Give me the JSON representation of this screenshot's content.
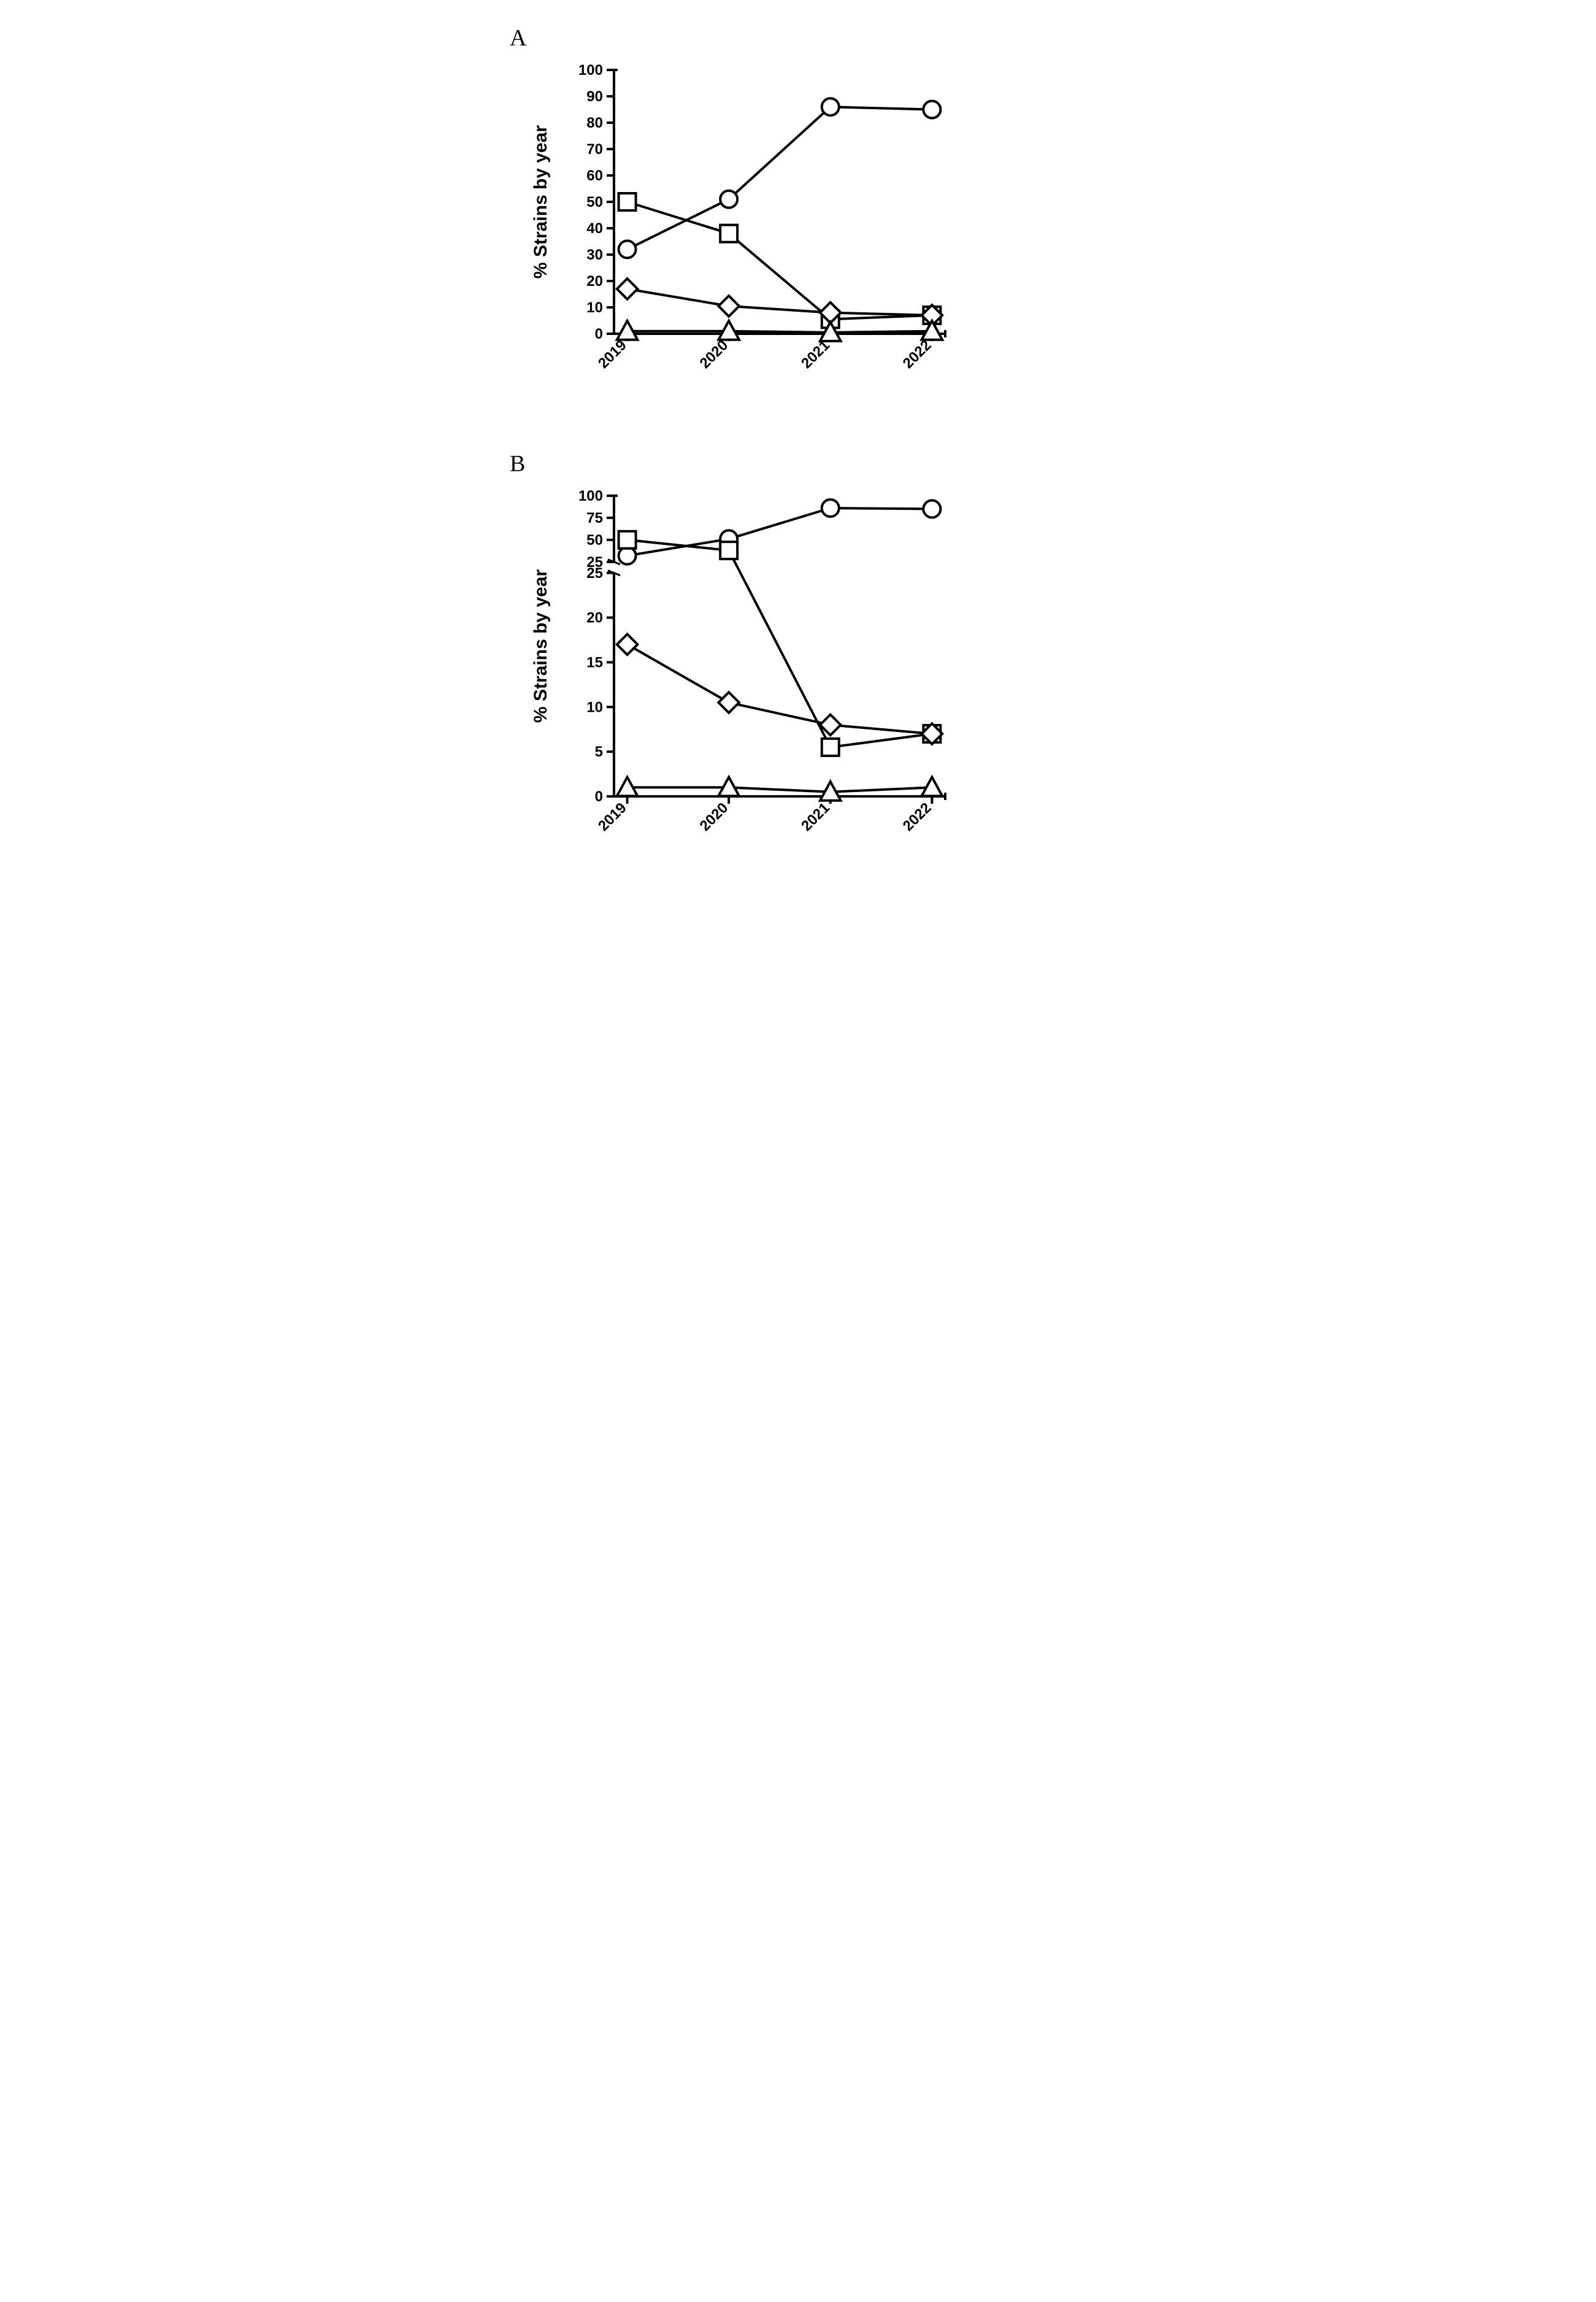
{
  "colors": {
    "line": "#000000",
    "marker_fill": "#ffffff",
    "marker_stroke": "#000000",
    "background": "#ffffff",
    "text": "#000000"
  },
  "typography": {
    "panel_label_fontsize": 38,
    "axis_label_fontsize": 30,
    "tick_fontsize": 24,
    "font_weight_axis": "bold"
  },
  "panelA": {
    "label": "A",
    "type": "line",
    "ylabel": "% Strains by year",
    "x_ticks": [
      "2019",
      "2020",
      "2021",
      "2022"
    ],
    "ylim": [
      0,
      100
    ],
    "y_ticks": [
      0,
      10,
      20,
      30,
      40,
      50,
      60,
      70,
      80,
      90,
      100
    ],
    "line_width": 4,
    "marker_size": 14,
    "marker_stroke_width": 4,
    "series": [
      {
        "marker": "circle",
        "values": [
          32,
          51,
          86,
          85
        ]
      },
      {
        "marker": "square",
        "values": [
          50,
          38,
          5.5,
          7
        ]
      },
      {
        "marker": "diamond",
        "values": [
          17,
          10.5,
          8,
          7
        ]
      },
      {
        "marker": "triangle",
        "values": [
          1,
          1,
          0.5,
          1
        ]
      }
    ]
  },
  "panelB": {
    "label": "B",
    "type": "line_broken_axis",
    "ylabel": "% Strains by year",
    "x_ticks": [
      "2019",
      "2020",
      "2021",
      "2022"
    ],
    "lower": {
      "ylim": [
        0,
        25
      ],
      "y_ticks": [
        0,
        5,
        10,
        15,
        20,
        25
      ]
    },
    "upper": {
      "ylim": [
        25,
        100
      ],
      "y_ticks": [
        25,
        50,
        75,
        100
      ]
    },
    "line_width": 4,
    "marker_size": 14,
    "marker_stroke_width": 4,
    "series": [
      {
        "marker": "circle",
        "values": [
          32,
          51,
          86,
          85
        ]
      },
      {
        "marker": "square",
        "values": [
          50,
          38,
          5.5,
          7
        ]
      },
      {
        "marker": "diamond",
        "values": [
          17,
          10.5,
          8,
          7
        ]
      },
      {
        "marker": "triangle",
        "values": [
          1,
          1,
          0.5,
          1
        ]
      }
    ]
  }
}
